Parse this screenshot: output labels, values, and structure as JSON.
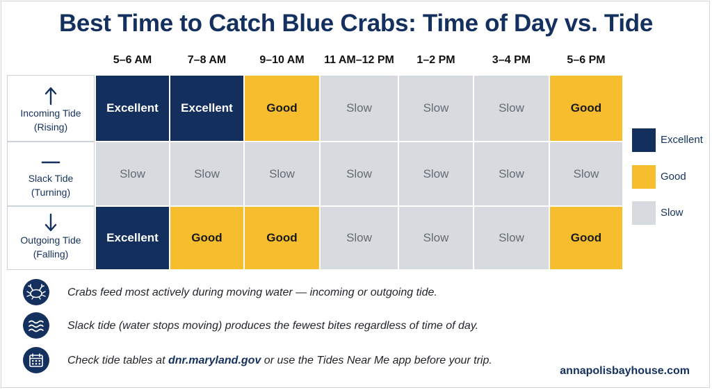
{
  "chart_data": {
    "type": "table",
    "title": "Best Time to Catch Blue Crabs: Time of Day vs. Tide",
    "columns": [
      "5–6 AM",
      "7–8 AM",
      "9–10 AM",
      "11 AM–12 PM",
      "1–2 PM",
      "3–4 PM",
      "5–6 PM"
    ],
    "rows": [
      {
        "label_line1": "Incoming Tide",
        "label_line2": "(Rising)",
        "icon": "arrow-up-icon",
        "values": [
          "Excellent",
          "Excellent",
          "Good",
          "Slow",
          "Slow",
          "Slow",
          "Good"
        ]
      },
      {
        "label_line1": "Slack Tide",
        "label_line2": "(Turning)",
        "icon": "dash-icon",
        "values": [
          "Slow",
          "Slow",
          "Slow",
          "Slow",
          "Slow",
          "Slow",
          "Slow"
        ]
      },
      {
        "label_line1": "Outgoing Tide",
        "label_line2": "(Falling)",
        "icon": "arrow-down-icon",
        "values": [
          "Excellent",
          "Good",
          "Good",
          "Slow",
          "Slow",
          "Slow",
          "Good"
        ]
      }
    ],
    "legend": [
      {
        "label": "Excellent",
        "color": "#132f5e"
      },
      {
        "label": "Good",
        "color": "#f6be2f"
      },
      {
        "label": "Slow",
        "color": "#d7dadf"
      }
    ],
    "legend_position": "right"
  },
  "notes": [
    {
      "icon": "crab-icon",
      "text": "Crabs feed most actively during moving water — incoming or outgoing tide."
    },
    {
      "icon": "waves-icon",
      "text": "Slack tide (water stops moving) produces the fewest bites regardless of time of day."
    },
    {
      "icon": "calendar-icon",
      "text_before": "Check tide tables at ",
      "link": "dnr.maryland.gov",
      "text_after": " or use the Tides Near Me app before your trip."
    }
  ],
  "footer": {
    "site": "annapolisbayhouse.com"
  },
  "colors": {
    "navy": "#14305e",
    "gold": "#f6be2f",
    "gray": "#d7dadf"
  }
}
